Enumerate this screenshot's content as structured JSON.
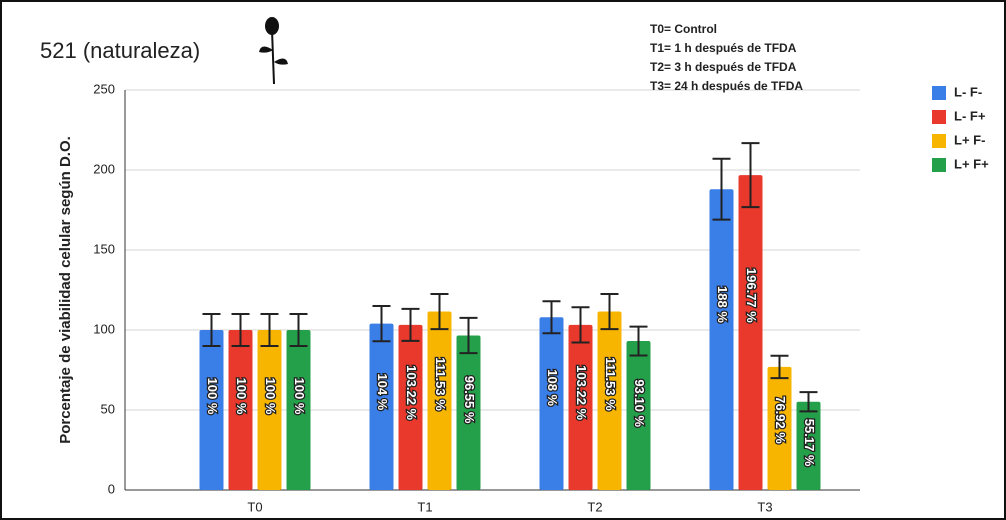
{
  "chart_data": {
    "type": "bar",
    "title": "521 (naturaleza)",
    "y_label": "Porcentaje de viabilidad celular según D.O.",
    "annotations": [
      "T0= Control",
      "T1= 1 h después de TFDA",
      "T2= 3 h después de TFDA",
      "T3= 24 h después de TFDA"
    ],
    "categories": [
      "T0",
      "T1",
      "T2",
      "T3"
    ],
    "series": [
      {
        "name": "L- F-",
        "color": "#3a7ee8",
        "values": [
          100,
          104,
          108,
          188
        ],
        "errors": [
          10,
          11,
          10,
          19
        ],
        "value_labels": [
          "100 %",
          "104 %",
          "108 %",
          "188 %"
        ]
      },
      {
        "name": "L- F+",
        "color": "#e8392c",
        "values": [
          100,
          103.22,
          103.22,
          196.77
        ],
        "errors": [
          10,
          10,
          11,
          20
        ],
        "value_labels": [
          "100 %",
          "103.22 %",
          "103.22 %",
          "196.77 %"
        ]
      },
      {
        "name": "L+ F-",
        "color": "#f7b500",
        "values": [
          100,
          111.53,
          111.53,
          76.92
        ],
        "errors": [
          10,
          11,
          11,
          7
        ],
        "value_labels": [
          "100 %",
          "111.53 %",
          "111.53 %",
          "76.92 %"
        ]
      },
      {
        "name": "L+ F+",
        "color": "#24a04a",
        "values": [
          100,
          96.55,
          93.1,
          55.17
        ],
        "errors": [
          10,
          11,
          9,
          6
        ],
        "value_labels": [
          "100 %",
          "96.55 %",
          "93.10 %",
          "55.17 %"
        ]
      }
    ],
    "ylim": [
      0,
      250
    ],
    "yticks": [
      0,
      50,
      100,
      150,
      200,
      250
    ],
    "grid": true,
    "legend": "right"
  }
}
